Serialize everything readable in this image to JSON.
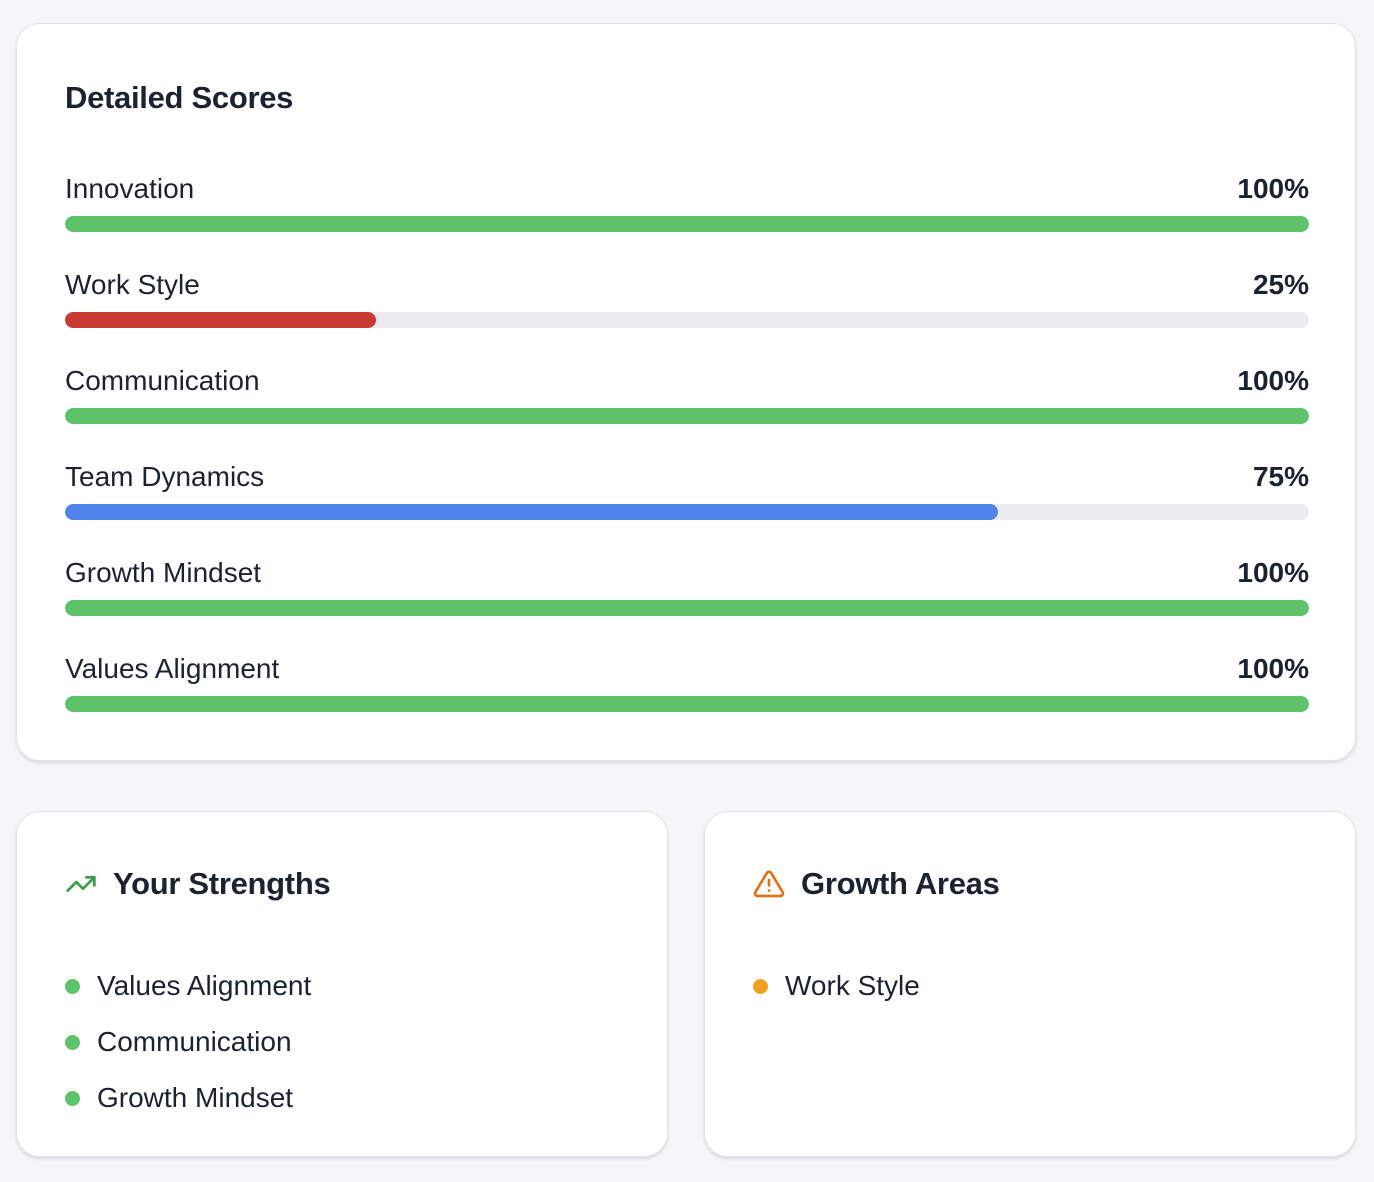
{
  "scores": {
    "title": "Detailed Scores",
    "items": [
      {
        "label": "Innovation",
        "value_text": "100%",
        "percent": 100,
        "color": "#5ec26a"
      },
      {
        "label": "Work Style",
        "value_text": "25%",
        "percent": 25,
        "color": "#c93a35"
      },
      {
        "label": "Communication",
        "value_text": "100%",
        "percent": 100,
        "color": "#5ec26a"
      },
      {
        "label": "Team Dynamics",
        "value_text": "75%",
        "percent": 75,
        "color": "#5283ea"
      },
      {
        "label": "Growth Mindset",
        "value_text": "100%",
        "percent": 100,
        "color": "#5ec26a"
      },
      {
        "label": "Values Alignment",
        "value_text": "100%",
        "percent": 100,
        "color": "#5ec26a"
      }
    ]
  },
  "strengths": {
    "title": "Your Strengths",
    "icon": "trending-up-icon",
    "icon_color": "#3a9c4b",
    "dot_color": "#5ec26a",
    "items": [
      "Values Alignment",
      "Communication",
      "Growth Mindset"
    ]
  },
  "growth_areas": {
    "title": "Growth Areas",
    "icon": "warning-triangle-icon",
    "icon_color": "#d9741c",
    "dot_color": "#f0a020",
    "items": [
      "Work Style"
    ]
  }
}
